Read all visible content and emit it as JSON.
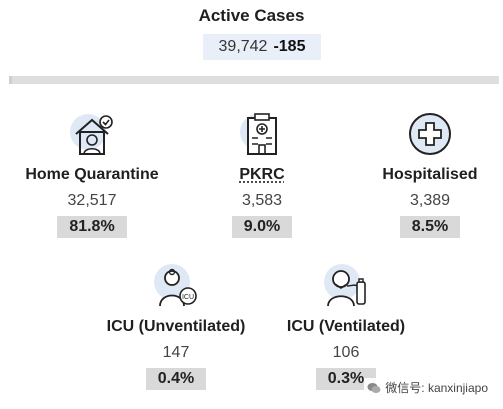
{
  "header": {
    "title": "Active Cases",
    "total": "39,742",
    "change": "-185"
  },
  "cards": [
    {
      "label": "Home Quarantine",
      "value": "32,517",
      "percent": "81.8%",
      "icon": "home-quarantine-icon"
    },
    {
      "label": "PKRC",
      "value": "3,583",
      "percent": "9.0%",
      "icon": "quarantine-building-icon"
    },
    {
      "label": "Hospitalised",
      "value": "3,389",
      "percent": "8.5%",
      "icon": "hospital-cross-icon"
    },
    {
      "label": "ICU (Unventilated)",
      "value": "147",
      "percent": "0.4%",
      "icon": "icu-doctor-icon"
    },
    {
      "label": "ICU (Ventilated)",
      "value": "106",
      "percent": "0.3%",
      "icon": "ventilator-patient-icon"
    }
  ],
  "watermark": {
    "text": "微信号: kanxinjiapo"
  },
  "colors": {
    "icon_circle": "#dfe9f6",
    "box": "#d9d9d9",
    "total_box": "#e9eff8"
  }
}
